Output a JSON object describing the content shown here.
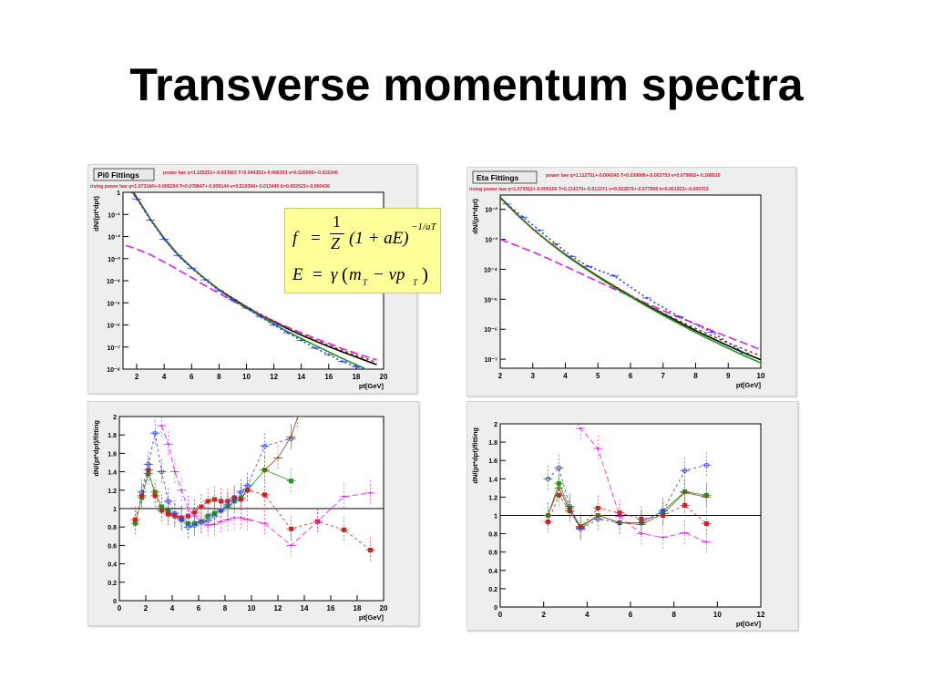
{
  "slide": {
    "title": "Transverse momentum spectra"
  },
  "formula": {
    "f_lhs": "f",
    "eq1": "=",
    "num": "1",
    "den": "Z",
    "paren": "(1 + aE)",
    "exponent": "−1/aT",
    "e_lhs": "E",
    "eq2": "=",
    "gamma": "γ",
    "paren2_open": "(",
    "m": "m",
    "sub_T1": "T",
    "minus": "− vp",
    "sub_T2": "T",
    "paren2_close": ")"
  },
  "colors": {
    "power_law": "#000000",
    "rising_power_law": "#e11fe1",
    "green_fit": "#1a9a1a",
    "blue_fit": "#2b3cf0",
    "brown_fit": "#8b4513",
    "red_fit": "#cc2222",
    "olive_fit": "#b0a000",
    "panel_bg": "#ffffff",
    "frame_bg": "#eeeeee"
  },
  "chart_data": [
    {
      "type": "line",
      "panel": "pi0-spectrum",
      "title": "Pi0 Fittings",
      "legend": [
        {
          "name": "power law",
          "params": "q=1.105201+-0.003563 T=0.044352+-0.006393 v=0.520000+-0.015340"
        },
        {
          "name": "rising power law",
          "params": "q=1.073184+-0.006294 T=0.078847+-0.009144 v=0.519394+-0.013440 b=0.002523+-0.000436"
        }
      ],
      "xlabel": "pt[GeV]",
      "ylabel": "dN/(pt*dpt)",
      "xlim": [
        1,
        20
      ],
      "ylim": [
        1e-08,
        1
      ],
      "log_y": true,
      "x_ticks": [
        2,
        4,
        6,
        8,
        10,
        12,
        14,
        16,
        18,
        20
      ],
      "x_tick_labels": [
        "2",
        "4",
        "6",
        "8",
        "10",
        "12",
        "14",
        "16",
        "18",
        "20"
      ],
      "y_ticks": [
        1,
        0.1,
        0.01,
        0.001,
        0.0001,
        1e-05,
        1e-06,
        1e-07,
        1e-08
      ],
      "y_tick_labels": [
        "1",
        "10⁻¹",
        "10⁻²",
        "10⁻³",
        "10⁻⁴",
        "10⁻⁵",
        "10⁻⁶",
        "10⁻⁷",
        "10⁻⁸"
      ],
      "series": [
        {
          "name": "power law",
          "x": [
            1.2,
            2,
            3,
            4,
            5,
            6,
            7,
            8,
            9,
            10,
            11,
            12,
            13,
            14,
            15,
            16,
            17,
            18,
            19.5
          ],
          "y": [
            3,
            0.6,
            0.06,
            0.008,
            0.0015,
            0.0004,
            0.00012,
            4e-05,
            1.6e-05,
            6.5e-06,
            2.9e-06,
            1.4e-06,
            6.8e-07,
            3.5e-07,
            1.9e-07,
            1.05e-07,
            6e-08,
            3.5e-08,
            1.6e-08
          ]
        },
        {
          "name": "rising power law",
          "x": [
            1.2,
            2,
            3,
            4,
            5,
            6,
            7,
            8,
            9,
            10,
            11,
            12,
            13,
            14,
            15,
            16,
            17,
            18,
            19.5
          ],
          "y": [
            0.004,
            0.0027,
            0.0015,
            0.0007,
            0.00032,
            0.00014,
            6e-05,
            2.7e-05,
            1.2e-05,
            5.8e-06,
            2.9e-06,
            1.5e-06,
            8e-07,
            4.4e-07,
            2.5e-07,
            1.45e-07,
            8.5e-08,
            5.2e-08,
            2.6e-08
          ]
        },
        {
          "name": "fit green",
          "x": [
            1.2,
            2,
            3,
            4,
            5,
            6,
            7,
            8,
            9,
            10,
            11,
            12,
            13,
            14,
            15,
            16,
            17,
            18,
            19.5
          ],
          "y": [
            2.5,
            0.55,
            0.06,
            0.0085,
            0.0016,
            0.0004,
            0.00012,
            3.8e-05,
            1.4e-05,
            5.8e-06,
            2.5e-06,
            1.1e-06,
            5e-07,
            2.4e-07,
            1.2e-07,
            6e-08,
            3e-08,
            1.6e-08,
            6e-09
          ]
        },
        {
          "name": "fit brown",
          "x": [
            1.2,
            2,
            3,
            4,
            5,
            6,
            7,
            8,
            9,
            10,
            11,
            12,
            13,
            14,
            15,
            16,
            17,
            18,
            19.5
          ],
          "y": [
            2.8,
            0.58,
            0.06,
            0.008,
            0.0015,
            0.0004,
            0.00012,
            4e-05,
            1.6e-05,
            6.8e-06,
            3.1e-06,
            1.5e-06,
            7.3e-07,
            3.8e-07,
            2.1e-07,
            1.2e-07,
            7e-08,
            4.2e-08,
            2e-08
          ]
        },
        {
          "name": "data",
          "x": [
            1.2,
            2,
            3,
            4,
            5,
            6,
            7,
            8,
            9,
            10,
            11,
            12,
            13,
            14,
            15,
            16,
            17,
            18,
            19
          ],
          "y": [
            2.2,
            0.5,
            0.055,
            0.0075,
            0.0014,
            0.00037,
            0.00011,
            3.6e-05,
            1.4e-05,
            5.8e-06,
            2.4e-06,
            1e-06,
            4.4e-07,
            2e-07,
            9e-08,
            4.5e-08,
            2.2e-08,
            1.3e-08,
            8e-09
          ]
        }
      ]
    },
    {
      "type": "scatter",
      "panel": "pi0-ratio",
      "xlabel": "pt[GeV]",
      "ylabel": "dN/(pt*dpt)/fitting",
      "xlim": [
        0,
        20
      ],
      "ylim": [
        0,
        2
      ],
      "x_ticks": [
        0,
        2,
        4,
        6,
        8,
        10,
        12,
        14,
        16,
        18,
        20
      ],
      "x_tick_labels": [
        "0",
        "2",
        "4",
        "6",
        "8",
        "10",
        "12",
        "14",
        "16",
        "18",
        "20"
      ],
      "y_ticks": [
        0,
        0.2,
        0.4,
        0.6,
        0.8,
        1,
        1.2,
        1.4,
        1.6,
        1.8,
        2
      ],
      "y_tick_labels": [
        "0",
        "0.2",
        "0.4",
        "0.6",
        "0.8",
        "1",
        "1.2",
        "1.4",
        "1.6",
        "1.8",
        "2"
      ],
      "reference_line": 1,
      "series": [
        {
          "name": "green",
          "x": [
            1.2,
            1.7,
            2.2,
            2.7,
            3.2,
            3.7,
            4.2,
            4.7,
            5.2,
            5.7,
            6.2,
            6.7,
            7.2,
            7.7,
            8.2,
            8.7,
            9.2,
            9.7,
            11,
            13
          ],
          "y": [
            0.84,
            1.12,
            1.38,
            1.18,
            1.02,
            0.97,
            0.92,
            0.88,
            0.84,
            0.84,
            0.86,
            0.92,
            0.95,
            0.98,
            1.02,
            1.08,
            1.12,
            1.2,
            1.42,
            1.3
          ]
        },
        {
          "name": "red",
          "x": [
            1.2,
            1.7,
            2.2,
            2.7,
            3.2,
            3.7,
            4.2,
            4.7,
            5.2,
            5.7,
            6.2,
            6.7,
            7.2,
            7.7,
            8.2,
            8.7,
            9.2,
            9.7,
            11,
            13,
            15,
            17,
            19
          ],
          "y": [
            0.88,
            1.14,
            1.42,
            1.14,
            0.98,
            0.94,
            0.92,
            0.9,
            0.92,
            0.96,
            1.02,
            1.08,
            1.1,
            1.08,
            1.08,
            1.12,
            1.1,
            1.2,
            1.15,
            0.78,
            0.86,
            0.77,
            0.55
          ]
        },
        {
          "name": "blue",
          "x": [
            1.7,
            2.2,
            2.7,
            3.2,
            3.7,
            4.2,
            4.7,
            5.2,
            5.7,
            6.2,
            6.7,
            7.2,
            7.7,
            8.2,
            8.7,
            9.2,
            9.7,
            11,
            13
          ],
          "y": [
            1.18,
            1.48,
            1.82,
            1.4,
            1.08,
            0.95,
            0.88,
            0.8,
            0.82,
            0.85,
            0.87,
            0.92,
            0.98,
            1.04,
            1.1,
            1.18,
            1.25,
            1.68,
            1.76
          ]
        },
        {
          "name": "magenta",
          "x": [
            3.2,
            3.7,
            4.2,
            4.7,
            5.2,
            5.7,
            6.2,
            6.7,
            7.2,
            7.7,
            8.2,
            8.7,
            9.2,
            9.7,
            11,
            13,
            15,
            17,
            19
          ],
          "y": [
            1.9,
            1.7,
            1.4,
            1.2,
            1.0,
            0.92,
            0.85,
            0.82,
            0.83,
            0.86,
            0.88,
            0.9,
            0.9,
            0.88,
            0.84,
            0.6,
            0.86,
            1.13,
            1.17
          ]
        },
        {
          "name": "brown",
          "x": [
            11,
            12,
            13,
            13.5
          ],
          "y": [
            1.42,
            1.55,
            1.78,
            2.0
          ]
        }
      ]
    },
    {
      "type": "line",
      "panel": "eta-spectrum",
      "title": "Eta Fittings",
      "legend": [
        {
          "name": "power law",
          "params": "q=1.112751+-0.006045 T=0.039098+-0.003753 v=0.079902+-0.168510"
        },
        {
          "name": "rising power law",
          "params": "q=1.073912+-0.009166 T=0.114379+-0.013371 v=0.022879+-0.577998 b=0.001923+-0.000753"
        }
      ],
      "xlabel": "pt[GeV]",
      "ylabel": "dN/(pt*dpt)",
      "xlim": [
        2,
        10
      ],
      "ylim": [
        5e-08,
        0.03
      ],
      "log_y": true,
      "x_ticks": [
        2,
        3,
        4,
        5,
        6,
        7,
        8,
        9,
        10
      ],
      "x_tick_labels": [
        "2",
        "3",
        "4",
        "5",
        "6",
        "7",
        "8",
        "9",
        "10"
      ],
      "y_ticks": [
        0.01,
        0.001,
        0.0001,
        1e-05,
        1e-06,
        1e-07
      ],
      "y_tick_labels": [
        "10⁻²",
        "10⁻³",
        "10⁻⁴",
        "10⁻⁵",
        "10⁻⁶",
        "10⁻⁷"
      ],
      "series": [
        {
          "name": "power law",
          "x": [
            2,
            2.5,
            3,
            3.5,
            4,
            4.5,
            5,
            5.5,
            6,
            6.5,
            7,
            7.5,
            8,
            8.5,
            9,
            9.5,
            10
          ],
          "y": [
            0.025,
            0.007,
            0.0022,
            0.0008,
            0.00031,
            0.000132,
            5.8e-05,
            2.7e-05,
            1.3e-05,
            6.4e-06,
            3.3e-06,
            1.7e-06,
            9e-07,
            5e-07,
            2.8e-07,
            1.6e-07,
            9.5e-08
          ]
        },
        {
          "name": "rising power law",
          "x": [
            2,
            2.5,
            3,
            3.5,
            4,
            4.5,
            5,
            5.5,
            6,
            6.5,
            7,
            7.5,
            8,
            8.5,
            9,
            9.5,
            10
          ],
          "y": [
            0.001,
            0.00062,
            0.00038,
            0.00022,
            0.000125,
            7e-05,
            3.9e-05,
            2.2e-05,
            1.25e-05,
            7.2e-06,
            4.2e-06,
            2.5e-06,
            1.5e-06,
            9e-07,
            5.5e-07,
            3.4e-07,
            2.1e-07
          ]
        },
        {
          "name": "fit green",
          "x": [
            2,
            2.5,
            3,
            3.5,
            4,
            4.5,
            5,
            5.5,
            6,
            6.5,
            7,
            7.5,
            8,
            8.5,
            9,
            9.5,
            10
          ],
          "y": [
            0.026,
            0.0072,
            0.0022,
            0.00078,
            0.0003,
            0.000126,
            5.5e-05,
            2.5e-05,
            1.2e-05,
            5.8e-06,
            2.9e-06,
            1.5e-06,
            7.8e-07,
            4.2e-07,
            2.3e-07,
            1.3e-07,
            7.5e-08
          ]
        },
        {
          "name": "fit brown",
          "x": [
            2,
            2.5,
            3,
            3.5,
            4,
            4.5,
            5,
            5.5,
            6,
            6.5,
            7,
            7.5,
            8,
            8.5,
            9,
            9.5,
            10
          ],
          "y": [
            0.024,
            0.0069,
            0.0022,
            0.0008,
            0.00031,
            0.000133,
            5.9e-05,
            2.8e-05,
            1.36e-05,
            6.8e-06,
            3.5e-06,
            1.9e-06,
            1.05e-06,
            6e-07,
            3.5e-07,
            2.1e-07,
            1.3e-07
          ]
        },
        {
          "name": "data",
          "x": [
            2.2,
            2.7,
            3.2,
            3.7,
            4.2,
            4.7,
            5.5,
            6.5,
            7.5,
            8.5,
            9.5
          ],
          "y": [
            0.015,
            0.0055,
            0.002,
            0.0007,
            0.00027,
            0.000125,
            6e-05,
            1.1e-05,
            2.6e-06,
            8e-07,
            1.6e-07
          ]
        }
      ]
    },
    {
      "type": "scatter",
      "panel": "eta-ratio",
      "xlabel": "pt[GeV]",
      "ylabel": "dN/(pt*dpt)/fitting",
      "xlim": [
        0,
        12
      ],
      "ylim": [
        0,
        2
      ],
      "x_ticks": [
        0,
        2,
        4,
        6,
        8,
        10,
        12
      ],
      "x_tick_labels": [
        "0",
        "2",
        "4",
        "6",
        "8",
        "10",
        "12"
      ],
      "y_ticks": [
        0,
        0.2,
        0.4,
        0.6,
        0.8,
        1,
        1.2,
        1.4,
        1.6,
        1.8,
        2
      ],
      "y_tick_labels": [
        "0",
        "0.2",
        "0.4",
        "0.6",
        "0.8",
        "1",
        "1.2",
        "1.4",
        "1.6",
        "1.8",
        "2"
      ],
      "reference_line": 1,
      "series": [
        {
          "name": "green",
          "x": [
            2.2,
            2.7,
            3.2,
            3.7,
            4.5,
            5.5,
            6.5,
            7.5,
            8.5,
            9.5
          ],
          "y": [
            1.0,
            1.35,
            1.08,
            0.88,
            1.0,
            0.92,
            0.92,
            1.05,
            1.26,
            1.22
          ]
        },
        {
          "name": "red",
          "x": [
            2.2,
            2.7,
            3.2,
            3.7,
            4.5,
            5.5,
            6.5,
            7.5,
            8.5,
            9.5
          ],
          "y": [
            0.93,
            1.22,
            1.05,
            0.87,
            1.08,
            1.03,
            0.96,
            1.0,
            1.11,
            0.91
          ]
        },
        {
          "name": "blue",
          "x": [
            2.2,
            2.7,
            3.2,
            3.7,
            4.5,
            5.5,
            6.5,
            7.5,
            8.5,
            9.5
          ],
          "y": [
            1.4,
            1.52,
            1.1,
            0.85,
            0.96,
            0.92,
            0.92,
            1.05,
            1.49,
            1.55
          ]
        },
        {
          "name": "magenta",
          "x": [
            3.2,
            3.7,
            4.5,
            5.5,
            6.5,
            7.5,
            8.5,
            9.5
          ],
          "y": [
            2.1,
            1.95,
            1.73,
            0.99,
            0.8,
            0.76,
            0.81,
            0.71
          ]
        },
        {
          "name": "brown",
          "x": [
            2.2,
            2.7,
            3.2,
            3.7,
            4.5,
            5.5,
            6.5,
            7.5,
            8.5,
            9.5
          ],
          "y": [
            1.0,
            1.3,
            1.05,
            0.86,
            1.0,
            0.92,
            0.9,
            1.02,
            1.25,
            1.2
          ]
        }
      ]
    }
  ]
}
